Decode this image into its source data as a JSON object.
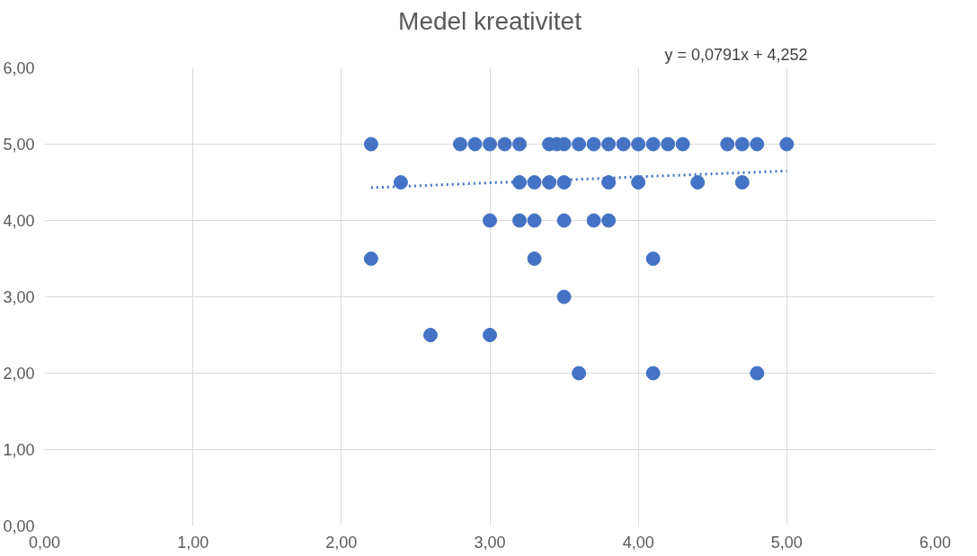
{
  "chart_data": {
    "type": "scatter",
    "title": "Medel kreativitet",
    "annotations": [
      "y = 0,0791x + 4,252"
    ],
    "grid": true,
    "xlim": [
      0,
      6
    ],
    "ylim": [
      0,
      6
    ],
    "xticks": [
      {
        "value": 0,
        "label": "0,00"
      },
      {
        "value": 1,
        "label": "1,00"
      },
      {
        "value": 2,
        "label": "2,00"
      },
      {
        "value": 3,
        "label": "3,00"
      },
      {
        "value": 4,
        "label": "4,00"
      },
      {
        "value": 5,
        "label": "5,00"
      },
      {
        "value": 6,
        "label": "6,00"
      }
    ],
    "yticks": [
      {
        "value": 0,
        "label": "0,00"
      },
      {
        "value": 1,
        "label": "1,00"
      },
      {
        "value": 2,
        "label": "2,00"
      },
      {
        "value": 3,
        "label": "3,00"
      },
      {
        "value": 4,
        "label": "4,00"
      },
      {
        "value": 5,
        "label": "5,00"
      },
      {
        "value": 6,
        "label": "6,00"
      }
    ],
    "series": [
      {
        "marker": "circle",
        "color": "#4472c4",
        "x": [
          2.2,
          2.8,
          2.9,
          3.0,
          3.1,
          3.2,
          3.4,
          3.45,
          3.5,
          3.6,
          3.7,
          3.8,
          3.9,
          4.0,
          4.1,
          4.2,
          4.3,
          4.6,
          4.7,
          4.8,
          5.0,
          2.4,
          3.2,
          3.3,
          3.4,
          3.5,
          3.8,
          4.0,
          4.4,
          4.7,
          3.0,
          3.2,
          3.3,
          3.5,
          3.7,
          3.8,
          2.2,
          3.3,
          4.1,
          3.5,
          2.6,
          3.0,
          3.6,
          4.1,
          4.8
        ],
        "values": [
          5,
          5,
          5,
          5,
          5,
          5,
          5,
          5,
          5,
          5,
          5,
          5,
          5,
          5,
          5,
          5,
          5,
          5,
          5,
          5,
          5,
          4.5,
          4.5,
          4.5,
          4.5,
          4.5,
          4.5,
          4.5,
          4.5,
          4.5,
          4,
          4,
          4,
          4,
          4,
          4,
          3.5,
          3.5,
          3.5,
          3,
          2.5,
          2.5,
          2,
          2,
          2
        ]
      },
      {
        "type": "line",
        "color": "#4472c4",
        "line_style": "dotted",
        "x": [
          2.2,
          5.0
        ],
        "values": [
          4.43,
          4.65
        ]
      }
    ]
  }
}
